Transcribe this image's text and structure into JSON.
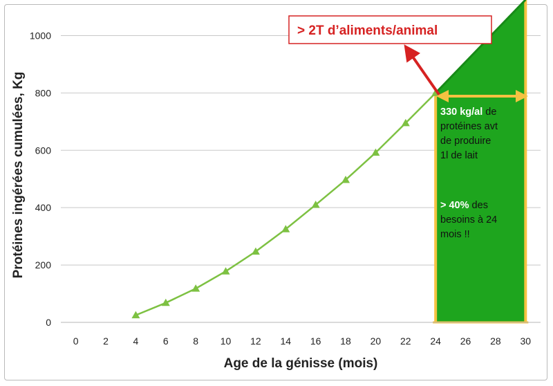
{
  "chart_data": {
    "type": "line",
    "xlabel": "Age de la génisse (mois)",
    "ylabel": "Protéines ingérées cumulées, Kg",
    "xlim": [
      -1,
      31
    ],
    "ylim": [
      0,
      1100
    ],
    "x_ticks": [
      "0",
      "2",
      "4",
      "6",
      "8",
      "10",
      "12",
      "14",
      "16",
      "18",
      "20",
      "22",
      "24",
      "26",
      "28",
      "30"
    ],
    "y_ticks": [
      "0",
      "200",
      "400",
      "600",
      "800",
      "1000"
    ],
    "grid": "horizontal",
    "series": [
      {
        "color": "#7dc142",
        "marker": "triangle",
        "x": [
          4,
          6,
          8,
          10,
          12,
          14,
          16,
          18,
          20,
          22,
          24
        ],
        "y": [
          25,
          68,
          118,
          178,
          247,
          325,
          410,
          497,
          592,
          695,
          800
        ]
      }
    ],
    "area": {
      "color": "#1ea51e",
      "x_start": 24,
      "x_end": 30,
      "y_start": 800,
      "y_end": 1125,
      "border_color": "#f5c242"
    },
    "annotations": {
      "callout_text": "> 2T d’aliments/animal",
      "callout_color": "#d62222",
      "note1": {
        "highlight": "330 kg/al",
        "line1": " de",
        "line2": "protéines avt",
        "line3": "de produire",
        "line4": "1l de lait"
      },
      "note2": {
        "highlight": "> 40%",
        "line1": " des",
        "line2": "besoins à 24",
        "line3": "mois !!"
      }
    }
  }
}
